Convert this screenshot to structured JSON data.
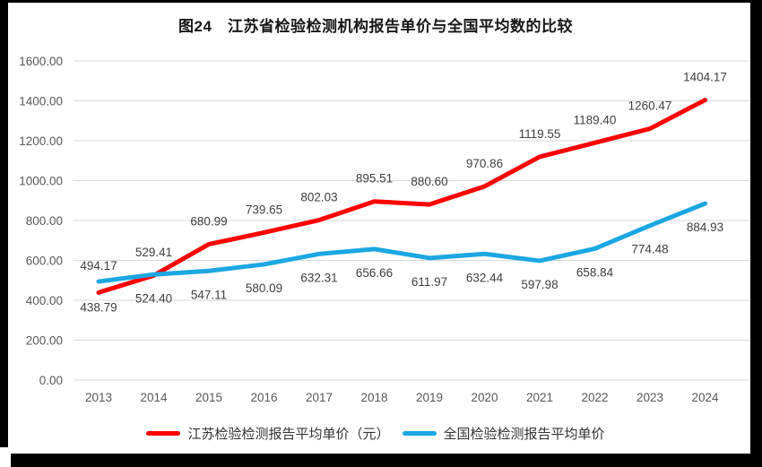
{
  "chart_data": {
    "type": "line",
    "title": "图24　江苏省检验检测机构报告单价与全国平均数的比较",
    "categories": [
      "2013",
      "2014",
      "2015",
      "2016",
      "2017",
      "2018",
      "2019",
      "2020",
      "2021",
      "2022",
      "2023",
      "2024"
    ],
    "series": [
      {
        "name": "江苏检验检测报告平均单价（元）",
        "color": "#fe0000",
        "values": [
          438.79,
          524.4,
          680.99,
          739.65,
          802.03,
          895.51,
          880.6,
          970.86,
          1119.55,
          1189.4,
          1260.47,
          1404.17
        ]
      },
      {
        "name": "全国检验检测报告平均单价",
        "color": "#1ba7e1",
        "values": [
          494.17,
          529.41,
          547.11,
          580.09,
          632.31,
          656.66,
          611.97,
          632.44,
          597.98,
          658.84,
          774.48,
          884.93
        ]
      }
    ],
    "y_axis": {
      "min": 0,
      "max": 1600,
      "step": 200,
      "tick_labels": [
        "0.00",
        "200.00",
        "400.00",
        "600.00",
        "800.00",
        "1000.00",
        "1200.00",
        "1400.00",
        "1600.00"
      ]
    },
    "grid": true,
    "gridline_color": "#d9d9d9",
    "axis_label_color": "#595959",
    "data_label_color": "#404040",
    "legend_position": "bottom",
    "data_labels_visible": true
  }
}
